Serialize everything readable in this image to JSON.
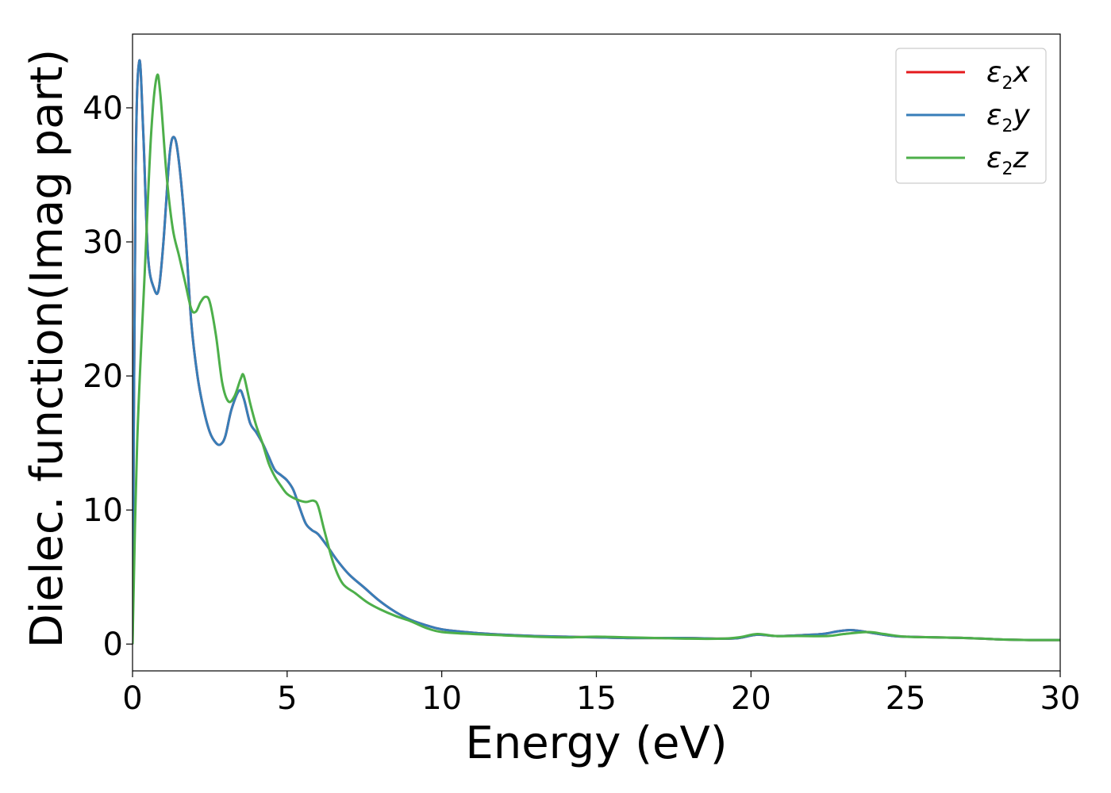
{
  "chart_data": {
    "type": "line",
    "title": "",
    "xlabel": "Energy (eV)",
    "ylabel": "Dielec. function(Imag part)",
    "xlim": [
      0,
      30
    ],
    "ylim": [
      -2,
      45.5
    ],
    "xticks": [
      "0",
      "5",
      "10",
      "15",
      "20",
      "25",
      "30"
    ],
    "yticks": [
      "0",
      "10",
      "20",
      "30",
      "40"
    ],
    "grid": false,
    "legend_position": "top-right",
    "series": [
      {
        "name": "ε2x",
        "base": "ε",
        "sub": "2",
        "suffix": "x",
        "color": "#e41a1c",
        "points": [
          [
            0,
            0
          ],
          [
            0.1,
            35
          ],
          [
            0.22,
            43.5
          ],
          [
            0.35,
            38
          ],
          [
            0.5,
            29
          ],
          [
            0.7,
            26.5
          ],
          [
            0.85,
            26.5
          ],
          [
            1.0,
            30
          ],
          [
            1.2,
            36.5
          ],
          [
            1.35,
            37.8
          ],
          [
            1.5,
            36
          ],
          [
            1.7,
            31
          ],
          [
            1.9,
            24
          ],
          [
            2.1,
            20
          ],
          [
            2.3,
            17.5
          ],
          [
            2.5,
            15.8
          ],
          [
            2.7,
            15
          ],
          [
            2.85,
            14.9
          ],
          [
            3.0,
            15.5
          ],
          [
            3.2,
            17.5
          ],
          [
            3.45,
            18.9
          ],
          [
            3.6,
            18.3
          ],
          [
            3.8,
            16.5
          ],
          [
            4.0,
            15.8
          ],
          [
            4.2,
            15
          ],
          [
            4.4,
            14
          ],
          [
            4.6,
            13
          ],
          [
            4.8,
            12.6
          ],
          [
            5.0,
            12.2
          ],
          [
            5.2,
            11.5
          ],
          [
            5.4,
            10.2
          ],
          [
            5.6,
            9
          ],
          [
            5.8,
            8.5
          ],
          [
            6.0,
            8.2
          ],
          [
            6.3,
            7.3
          ],
          [
            6.6,
            6.3
          ],
          [
            7.0,
            5.2
          ],
          [
            7.5,
            4.2
          ],
          [
            8.0,
            3.2
          ],
          [
            8.5,
            2.4
          ],
          [
            9.0,
            1.8
          ],
          [
            9.5,
            1.4
          ],
          [
            10,
            1.1
          ],
          [
            11,
            0.85
          ],
          [
            12,
            0.7
          ],
          [
            13,
            0.6
          ],
          [
            14,
            0.55
          ],
          [
            15,
            0.5
          ],
          [
            16,
            0.45
          ],
          [
            17,
            0.45
          ],
          [
            18,
            0.45
          ],
          [
            19,
            0.4
          ],
          [
            19.6,
            0.45
          ],
          [
            20.2,
            0.7
          ],
          [
            20.8,
            0.6
          ],
          [
            21.5,
            0.65
          ],
          [
            22.3,
            0.75
          ],
          [
            22.8,
            0.95
          ],
          [
            23.2,
            1.05
          ],
          [
            23.6,
            0.95
          ],
          [
            24,
            0.8
          ],
          [
            24.6,
            0.6
          ],
          [
            25,
            0.55
          ],
          [
            26,
            0.5
          ],
          [
            27,
            0.45
          ],
          [
            28,
            0.35
          ],
          [
            29,
            0.3
          ],
          [
            30,
            0.3
          ]
        ]
      },
      {
        "name": "ε2y",
        "base": "ε",
        "sub": "2",
        "suffix": "y",
        "color": "#377eb8",
        "points": [
          [
            0,
            0
          ],
          [
            0.1,
            35
          ],
          [
            0.22,
            43.5
          ],
          [
            0.35,
            38
          ],
          [
            0.5,
            29
          ],
          [
            0.7,
            26.5
          ],
          [
            0.85,
            26.5
          ],
          [
            1.0,
            30
          ],
          [
            1.2,
            36.5
          ],
          [
            1.35,
            37.8
          ],
          [
            1.5,
            36
          ],
          [
            1.7,
            31
          ],
          [
            1.9,
            24
          ],
          [
            2.1,
            20
          ],
          [
            2.3,
            17.5
          ],
          [
            2.5,
            15.8
          ],
          [
            2.7,
            15
          ],
          [
            2.85,
            14.9
          ],
          [
            3.0,
            15.5
          ],
          [
            3.2,
            17.5
          ],
          [
            3.45,
            18.9
          ],
          [
            3.6,
            18.3
          ],
          [
            3.8,
            16.5
          ],
          [
            4.0,
            15.8
          ],
          [
            4.2,
            15
          ],
          [
            4.4,
            14
          ],
          [
            4.6,
            13
          ],
          [
            4.8,
            12.6
          ],
          [
            5.0,
            12.2
          ],
          [
            5.2,
            11.5
          ],
          [
            5.4,
            10.2
          ],
          [
            5.6,
            9
          ],
          [
            5.8,
            8.5
          ],
          [
            6.0,
            8.2
          ],
          [
            6.3,
            7.3
          ],
          [
            6.6,
            6.3
          ],
          [
            7.0,
            5.2
          ],
          [
            7.5,
            4.2
          ],
          [
            8.0,
            3.2
          ],
          [
            8.5,
            2.4
          ],
          [
            9.0,
            1.8
          ],
          [
            9.5,
            1.4
          ],
          [
            10,
            1.1
          ],
          [
            11,
            0.85
          ],
          [
            12,
            0.7
          ],
          [
            13,
            0.6
          ],
          [
            14,
            0.55
          ],
          [
            15,
            0.5
          ],
          [
            16,
            0.45
          ],
          [
            17,
            0.45
          ],
          [
            18,
            0.45
          ],
          [
            19,
            0.4
          ],
          [
            19.6,
            0.45
          ],
          [
            20.2,
            0.7
          ],
          [
            20.8,
            0.6
          ],
          [
            21.5,
            0.65
          ],
          [
            22.3,
            0.75
          ],
          [
            22.8,
            0.95
          ],
          [
            23.2,
            1.05
          ],
          [
            23.6,
            0.95
          ],
          [
            24,
            0.8
          ],
          [
            24.6,
            0.6
          ],
          [
            25,
            0.55
          ],
          [
            26,
            0.5
          ],
          [
            27,
            0.45
          ],
          [
            28,
            0.35
          ],
          [
            29,
            0.3
          ],
          [
            30,
            0.3
          ]
        ]
      },
      {
        "name": "ε2z",
        "base": "ε",
        "sub": "2",
        "suffix": "z",
        "color": "#4daf4a",
        "points": [
          [
            0,
            0
          ],
          [
            0.15,
            15
          ],
          [
            0.4,
            28
          ],
          [
            0.6,
            38
          ],
          [
            0.78,
            42.3
          ],
          [
            0.9,
            41
          ],
          [
            1.1,
            35
          ],
          [
            1.3,
            31
          ],
          [
            1.5,
            29
          ],
          [
            1.7,
            27
          ],
          [
            1.9,
            25
          ],
          [
            2.05,
            24.8
          ],
          [
            2.2,
            25.5
          ],
          [
            2.35,
            25.9
          ],
          [
            2.5,
            25.5
          ],
          [
            2.7,
            23
          ],
          [
            2.9,
            19.5
          ],
          [
            3.1,
            18.1
          ],
          [
            3.3,
            18.5
          ],
          [
            3.5,
            19.8
          ],
          [
            3.6,
            20
          ],
          [
            3.8,
            18
          ],
          [
            4.0,
            16.3
          ],
          [
            4.2,
            15
          ],
          [
            4.4,
            13.5
          ],
          [
            4.6,
            12.5
          ],
          [
            4.8,
            11.8
          ],
          [
            5.0,
            11.2
          ],
          [
            5.3,
            10.8
          ],
          [
            5.6,
            10.6
          ],
          [
            5.85,
            10.7
          ],
          [
            6.0,
            10.3
          ],
          [
            6.2,
            8.5
          ],
          [
            6.5,
            6
          ],
          [
            6.8,
            4.5
          ],
          [
            7.2,
            3.8
          ],
          [
            7.6,
            3.1
          ],
          [
            8.0,
            2.6
          ],
          [
            8.5,
            2.1
          ],
          [
            9.0,
            1.7
          ],
          [
            9.5,
            1.2
          ],
          [
            10,
            0.9
          ],
          [
            11,
            0.75
          ],
          [
            12,
            0.65
          ],
          [
            13,
            0.55
          ],
          [
            14,
            0.5
          ],
          [
            15,
            0.55
          ],
          [
            16,
            0.5
          ],
          [
            17,
            0.45
          ],
          [
            18,
            0.4
          ],
          [
            19,
            0.4
          ],
          [
            19.6,
            0.5
          ],
          [
            20.2,
            0.75
          ],
          [
            20.8,
            0.6
          ],
          [
            21.5,
            0.6
          ],
          [
            22.5,
            0.6
          ],
          [
            23,
            0.75
          ],
          [
            23.8,
            0.9
          ],
          [
            24.3,
            0.75
          ],
          [
            25,
            0.55
          ],
          [
            26,
            0.5
          ],
          [
            27,
            0.45
          ],
          [
            28,
            0.35
          ],
          [
            29,
            0.3
          ],
          [
            30,
            0.3
          ]
        ]
      }
    ]
  }
}
